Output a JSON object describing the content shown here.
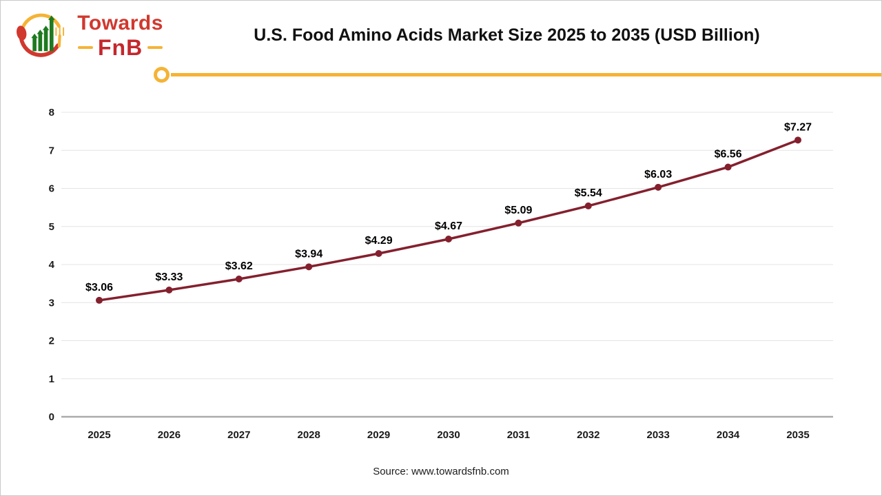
{
  "colors": {
    "accent": "#F5B335",
    "series": "#84202E",
    "grid": "#E4E4E4",
    "axis": "#ABABAB",
    "logo_red": "#D1382E",
    "logo_dark_red": "#C4272D",
    "logo_green": "#1E7A1F"
  },
  "logo": {
    "brand": "Towards",
    "sub": "FnB"
  },
  "header": {
    "title": "U.S. Food Amino Acids Market Size 2025 to 2035 (USD Billion)"
  },
  "source": {
    "text": "Source: www.towardsfnb.com"
  },
  "chart_data": {
    "type": "line",
    "title": "U.S. Food Amino Acids Market Size 2025 to 2035 (USD Billion)",
    "categories": [
      "2025",
      "2026",
      "2027",
      "2028",
      "2029",
      "2030",
      "2031",
      "2032",
      "2033",
      "2034",
      "2035"
    ],
    "values": [
      3.06,
      3.33,
      3.62,
      3.94,
      4.29,
      4.67,
      5.09,
      5.54,
      6.03,
      6.56,
      7.27
    ],
    "value_labels": [
      "$3.06",
      "$3.33",
      "$3.62",
      "$3.94",
      "$4.29",
      "$4.67",
      "$5.09",
      "$5.54",
      "$6.03",
      "$6.56",
      "$7.27"
    ],
    "xlabel": "",
    "ylabel": "",
    "ylim": [
      0,
      8
    ],
    "yticks": [
      0,
      1,
      2,
      3,
      4,
      5,
      6,
      7,
      8
    ],
    "grid": "horizontal",
    "legend_position": "none",
    "marker": "circle"
  }
}
